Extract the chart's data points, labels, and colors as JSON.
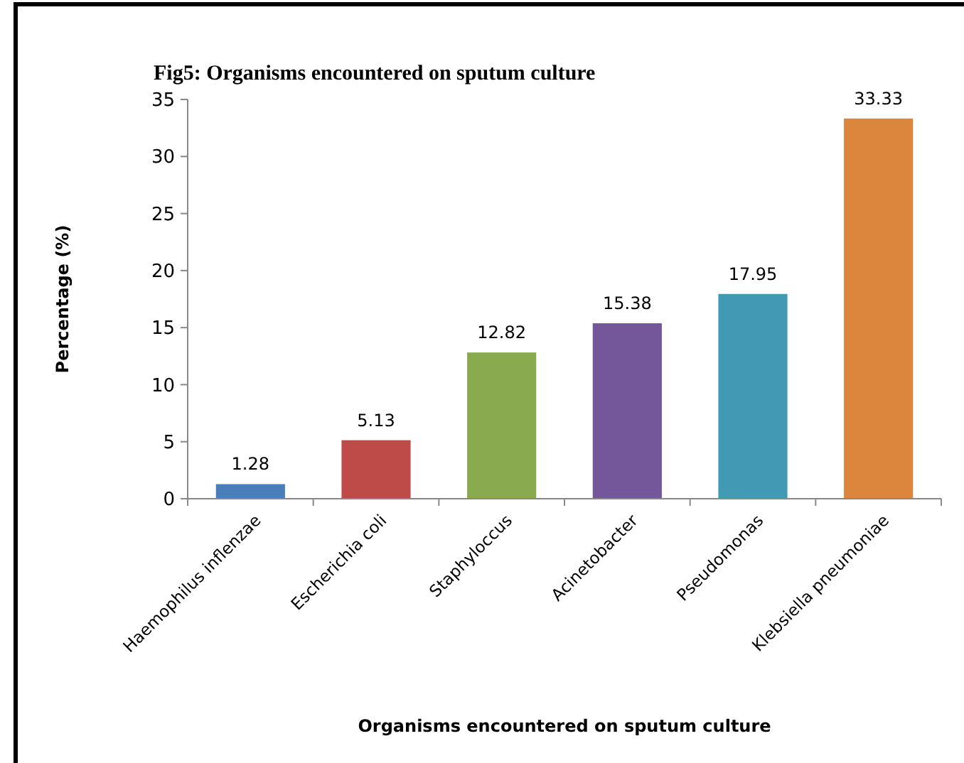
{
  "chart_data": {
    "type": "bar",
    "title": "Fig5: Organisms encountered on sputum culture",
    "xlabel": "Organisms encountered on sputum culture",
    "ylabel": "Percentage (%)",
    "categories": [
      "Haemophilus inflenzae",
      "Escherichia coli",
      "Staphyloccus",
      "Acinetobacter",
      "Pseudomonas",
      "Klebsiella pneumoniae"
    ],
    "values": [
      1.28,
      5.13,
      12.82,
      15.38,
      17.95,
      33.33
    ],
    "colors": [
      "#4a7ebb",
      "#be4b48",
      "#8aaa50",
      "#73579a",
      "#4299b4",
      "#dc853c"
    ],
    "ylim": [
      0,
      35
    ],
    "yticks": [
      0,
      5,
      10,
      15,
      20,
      25,
      30,
      35
    ],
    "data_labels": true
  }
}
